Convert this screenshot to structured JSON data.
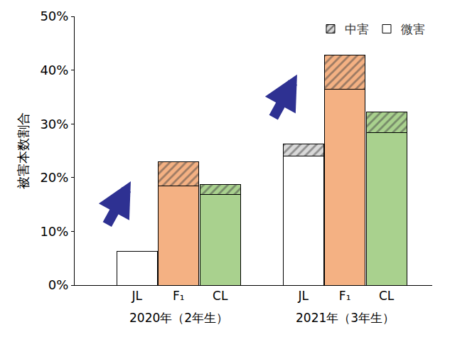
{
  "chart_data": {
    "type": "bar",
    "stacked": true,
    "y_label": "被害本数割合",
    "categories": [
      "JL",
      "F₁",
      "CL",
      "JL",
      "F₁",
      "CL"
    ],
    "groups": [
      "2020年（2年生）",
      "2021年（3年生）"
    ],
    "series": [
      {
        "name": "微害",
        "values": [
          6.3,
          18.5,
          16.8,
          24.0,
          36.5,
          28.4
        ],
        "colors": [
          "#ffffff",
          "#f4b183",
          "#a9d18e",
          "#ffffff",
          "#f4b183",
          "#a9d18e"
        ]
      },
      {
        "name": "中害",
        "values": [
          0,
          4.4,
          1.9,
          2.2,
          6.3,
          3.8
        ],
        "marker": "hatch",
        "colors": [
          "#d9d9d9",
          "#f4b183",
          "#a9d18e",
          "#d9d9d9",
          "#f4b183",
          "#a9d18e"
        ]
      }
    ],
    "ylim": [
      0,
      50
    ],
    "yticks": [
      {
        "value": 0,
        "label": "0%"
      },
      {
        "value": 10,
        "label": "10%"
      },
      {
        "value": 20,
        "label": "20%"
      },
      {
        "value": 30,
        "label": "30%"
      },
      {
        "value": 40,
        "label": "40%"
      },
      {
        "value": 50,
        "label": "50%"
      }
    ],
    "grid": false,
    "legend": "top right"
  }
}
